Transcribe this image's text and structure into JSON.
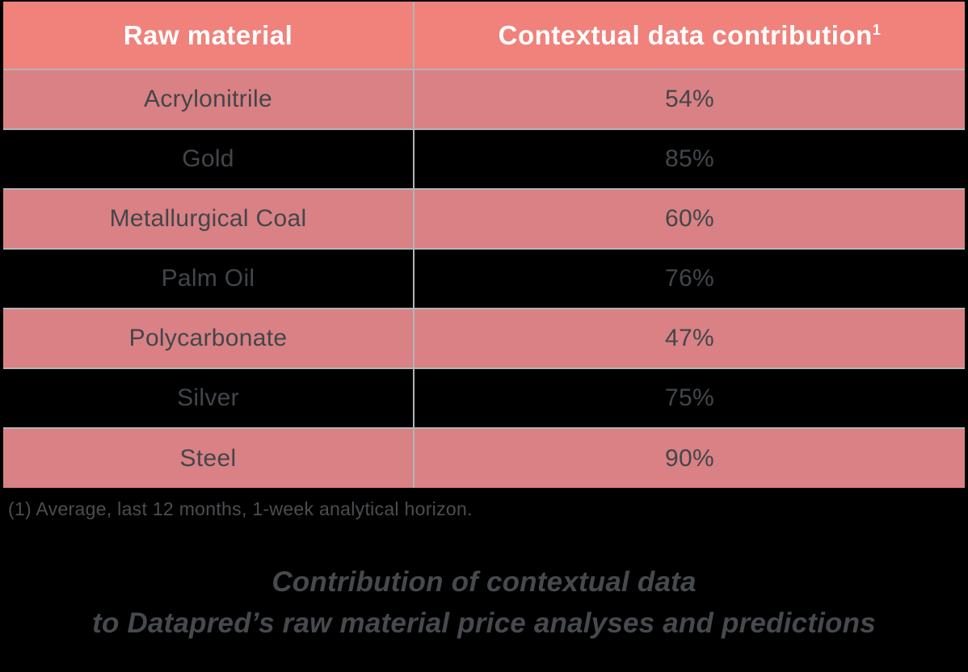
{
  "chart_data": {
    "type": "table",
    "columns": {
      "material": "Raw material",
      "contribution": "Contextual data contribution",
      "contribution_superscript": "1"
    },
    "rows": [
      {
        "material": "Acrylonitrile",
        "contribution": "54%",
        "contribution_pct": 54
      },
      {
        "material": "Gold",
        "contribution": "85%",
        "contribution_pct": 85
      },
      {
        "material": "Metallurgical Coal",
        "contribution": "60%",
        "contribution_pct": 60
      },
      {
        "material": "Palm Oil",
        "contribution": "76%",
        "contribution_pct": 76
      },
      {
        "material": "Polycarbonate",
        "contribution": "47%",
        "contribution_pct": 47
      },
      {
        "material": "Silver",
        "contribution": "75%",
        "contribution_pct": 75
      },
      {
        "material": "Steel",
        "contribution": "90%",
        "contribution_pct": 90
      }
    ],
    "footnote": "(1) Average, last 12 months, 1-week analytical horizon.",
    "caption_line1": "Contribution of contextual data",
    "caption_line2": "to Datapred’s raw material price analyses and predictions",
    "layout_hints": {
      "striping": "odd rows pink, even rows black",
      "grid": "inner gridlines only, no outer border"
    }
  },
  "colors": {
    "page_bg": "#000000",
    "header_bg": "#F0827B",
    "row_accent_bg": "#D98184",
    "row_dark_bg": "#000000",
    "grid_line": "#B0B6B6",
    "header_text": "#FFFFFF",
    "body_text": "#42464B",
    "footnote_text": "#4A4E52",
    "caption_text": "#46494D"
  }
}
